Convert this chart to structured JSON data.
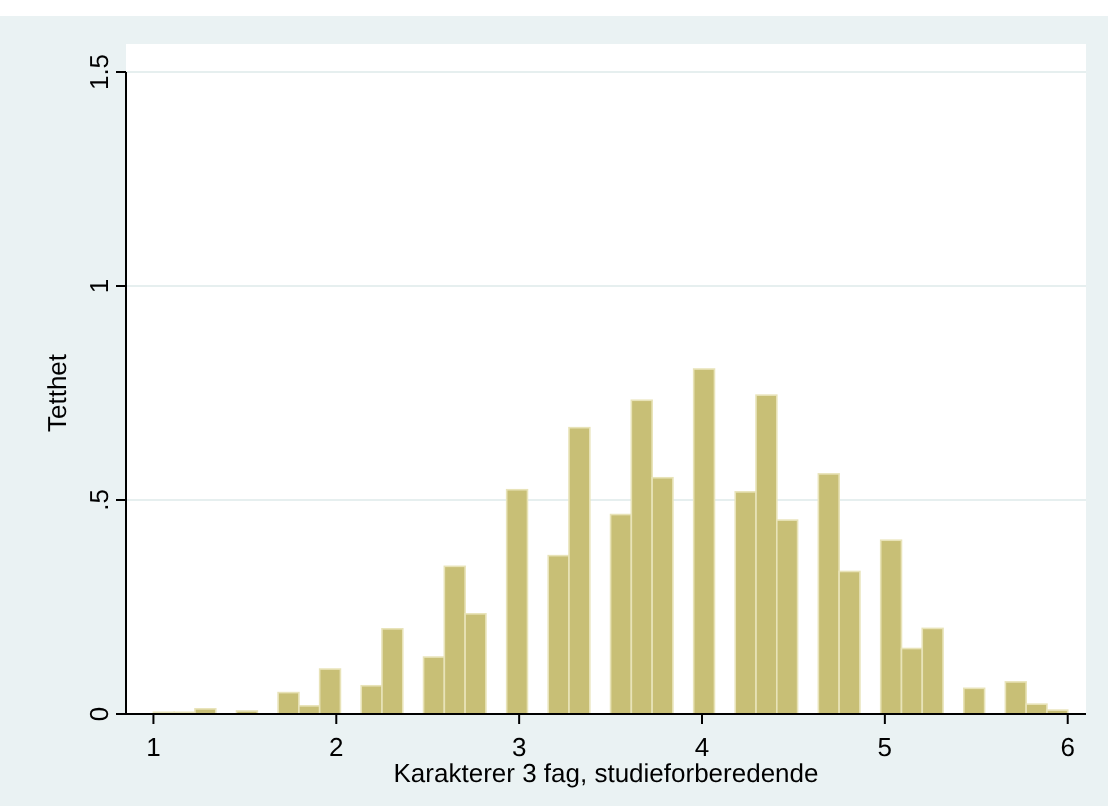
{
  "chart_data": {
    "type": "histogram",
    "xlabel": "Karakterer 3 fag, studieforberedende",
    "ylabel": "Tetthet",
    "color": "#c8bf76",
    "bins": [
      1,
      1.1136,
      1.2273,
      1.3409,
      1.4545,
      1.5682,
      1.6818,
      1.7955,
      1.9091,
      2.0227,
      2.1364,
      2.25,
      2.3636,
      2.4773,
      2.5909,
      2.7045,
      2.8182,
      2.9318,
      3.0455,
      3.1591,
      3.2727,
      3.3864,
      3.5,
      3.6136,
      3.7273,
      3.8409,
      3.9545,
      4.0682,
      4.1818,
      4.2955,
      4.4091,
      4.5227,
      4.6364,
      4.75,
      4.8636,
      4.9773,
      5.0909,
      5.2045,
      5.3182,
      5.4318,
      5.5455,
      5.6591,
      5.7727,
      5.8864,
      6
    ],
    "values": [
      0.004,
      0.004,
      0.012,
      0,
      0.007,
      0,
      0.05,
      0.019,
      0.105,
      0,
      0.066,
      0.199,
      0,
      0.133,
      0.345,
      0.234,
      0,
      0.524,
      0,
      0.37,
      0.669,
      0,
      0.466,
      0.733,
      0.552,
      0,
      0.806,
      0,
      0.519,
      0.745,
      0.453,
      0,
      0.561,
      0.333,
      0,
      0.406,
      0.153,
      0.2,
      0,
      0.06,
      0,
      0.075,
      0.023,
      0.009
    ],
    "xlim": [
      0.85,
      6.1
    ],
    "xticks": [
      1,
      2,
      3,
      4,
      5,
      6
    ],
    "ylim": [
      0,
      1.5
    ],
    "yticks": [
      {
        "value": 0,
        "label": "0"
      },
      {
        "value": 0.5,
        "label": ".5"
      },
      {
        "value": 1,
        "label": "1"
      },
      {
        "value": 1.5,
        "label": "1.5"
      }
    ],
    "grid": "y"
  }
}
